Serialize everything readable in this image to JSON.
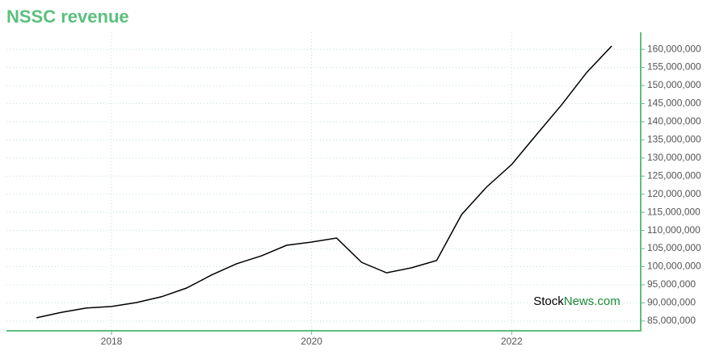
{
  "chart_data": {
    "type": "line",
    "title": "NSSC revenue",
    "watermark": {
      "left": "Stock",
      "right": "News.com"
    },
    "accent_color": "#5cbf7e",
    "x": [
      2017.25,
      2017.5,
      2017.75,
      2018.0,
      2018.25,
      2018.5,
      2018.75,
      2019.0,
      2019.25,
      2019.5,
      2019.75,
      2020.0,
      2020.25,
      2020.5,
      2020.75,
      2021.0,
      2021.25,
      2021.5,
      2021.75,
      2022.0,
      2022.25,
      2022.5,
      2022.75,
      2023.0
    ],
    "series": [
      {
        "name": "Revenue",
        "color": "#000000",
        "values": [
          85900000,
          87400000,
          88600000,
          89000000,
          90100000,
          91700000,
          94100000,
          97700000,
          100800000,
          103000000,
          105900000,
          106800000,
          107900000,
          101200000,
          98300000,
          99700000,
          101700000,
          114400000,
          122000000,
          128200000,
          136500000,
          144700000,
          153600000,
          160900000
        ]
      }
    ],
    "xlim": [
      2016.95,
      2023.29
    ],
    "xticks": [
      2018,
      2020,
      2022
    ],
    "ylim": [
      82300000,
      164700000
    ],
    "yticks": [
      {
        "value": 85000000,
        "label": "85,000,000"
      },
      {
        "value": 90000000,
        "label": "90,000,000"
      },
      {
        "value": 95000000,
        "label": "95,000,000"
      },
      {
        "value": 100000000,
        "label": "100,000,000"
      },
      {
        "value": 105000000,
        "label": "105,000,000"
      },
      {
        "value": 110000000,
        "label": "110,000,000"
      },
      {
        "value": 115000000,
        "label": "115,000,000"
      },
      {
        "value": 120000000,
        "label": "120,000,000"
      },
      {
        "value": 125000000,
        "label": "125,000,000"
      },
      {
        "value": 130000000,
        "label": "130,000,000"
      },
      {
        "value": 135000000,
        "label": "135,000,000"
      },
      {
        "value": 140000000,
        "label": "140,000,000"
      },
      {
        "value": 145000000,
        "label": "145,000,000"
      },
      {
        "value": 150000000,
        "label": "150,000,000"
      },
      {
        "value": 155000000,
        "label": "155,000,000"
      },
      {
        "value": 160000000,
        "label": "160,000,000"
      }
    ],
    "grid": true
  }
}
